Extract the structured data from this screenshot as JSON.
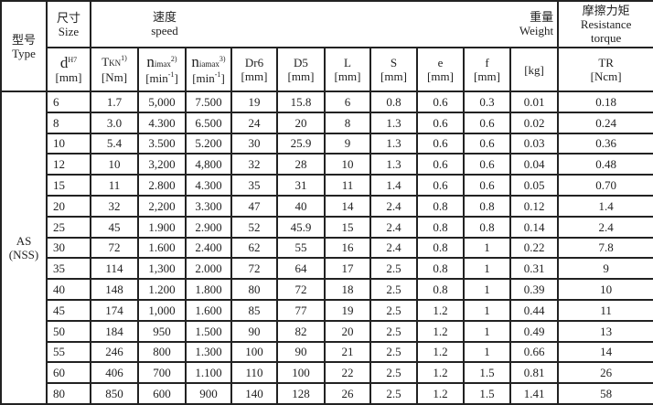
{
  "header": {
    "type_zh": "型号",
    "type_en": "Type",
    "size_zh": "尺寸",
    "size_en": "Size",
    "speed_zh": "速度",
    "speed_en": "speed",
    "weight_zh": "重量",
    "weight_en": "Weight",
    "resistance_zh": "摩擦力矩",
    "resistance_en1": "Resistance",
    "resistance_en2": "torque",
    "cols": {
      "d": {
        "main": "d",
        "sup": "H7",
        "unit": "[mm]"
      },
      "tkn": {
        "main": "T",
        "sub": "KN",
        "sup": "1)",
        "unit": "[Nm]"
      },
      "nimax": {
        "main": "n",
        "sub": "imax",
        "sup": "2)",
        "unit_a": "[min",
        "unit_sup": "-1",
        "unit_b": "]"
      },
      "niamax": {
        "main": "n",
        "sub": "iamax",
        "sup": "3)",
        "unit_a": "[min",
        "unit_sup": "-1",
        "unit_b": "]"
      },
      "dr6": {
        "main": "Dr6",
        "unit": "[mm]"
      },
      "d5": {
        "main": "D5",
        "unit": "[mm]"
      },
      "l": {
        "main": "L",
        "unit": "[mm]"
      },
      "s": {
        "main": "S",
        "unit": "[mm]"
      },
      "e": {
        "main": "e",
        "unit": "[mm]"
      },
      "f": {
        "main": "f",
        "unit": "[mm]"
      },
      "kg": {
        "unit": "[kg]"
      },
      "tr": {
        "main": "TR",
        "unit": "[Ncm]"
      }
    }
  },
  "type_label": "AS",
  "type_sub": "(NSS)",
  "rows": [
    [
      "6",
      "1.7",
      "5,000",
      "7.500",
      "19",
      "15.8",
      "6",
      "0.8",
      "0.6",
      "0.3",
      "0.01",
      "0.18"
    ],
    [
      "8",
      "3.0",
      "4.300",
      "6.500",
      "24",
      "20",
      "8",
      "1.3",
      "0.6",
      "0.6",
      "0.02",
      "0.24"
    ],
    [
      "10",
      "5.4",
      "3.500",
      "5.200",
      "30",
      "25.9",
      "9",
      "1.3",
      "0.6",
      "0.6",
      "0.03",
      "0.36"
    ],
    [
      "12",
      "10",
      "3,200",
      "4,800",
      "32",
      "28",
      "10",
      "1.3",
      "0.6",
      "0.6",
      "0.04",
      "0.48"
    ],
    [
      "15",
      "11",
      "2.800",
      "4.300",
      "35",
      "31",
      "11",
      "1.4",
      "0.6",
      "0.6",
      "0.05",
      "0.70"
    ],
    [
      "20",
      "32",
      "2,200",
      "3.300",
      "47",
      "40",
      "14",
      "2.4",
      "0.8",
      "0.8",
      "0.12",
      "1.4"
    ],
    [
      "25",
      "45",
      "1.900",
      "2.900",
      "52",
      "45.9",
      "15",
      "2.4",
      "0.8",
      "0.8",
      "0.14",
      "2.4"
    ],
    [
      "30",
      "72",
      "1.600",
      "2.400",
      "62",
      "55",
      "16",
      "2.4",
      "0.8",
      "1",
      "0.22",
      "7.8"
    ],
    [
      "35",
      "114",
      "1,300",
      "2.000",
      "72",
      "64",
      "17",
      "2.5",
      "0.8",
      "1",
      "0.31",
      "9"
    ],
    [
      "40",
      "148",
      "1.200",
      "1.800",
      "80",
      "72",
      "18",
      "2.5",
      "0.8",
      "1",
      "0.39",
      "10"
    ],
    [
      "45",
      "174",
      "1,000",
      "1.600",
      "85",
      "77",
      "19",
      "2.5",
      "1.2",
      "1",
      "0.44",
      "11"
    ],
    [
      "50",
      "184",
      "950",
      "1.500",
      "90",
      "82",
      "20",
      "2.5",
      "1.2",
      "1",
      "0.49",
      "13"
    ],
    [
      "55",
      "246",
      "800",
      "1.300",
      "100",
      "90",
      "21",
      "2.5",
      "1.2",
      "1",
      "0.66",
      "14"
    ],
    [
      "60",
      "406",
      "700",
      "1.100",
      "110",
      "100",
      "22",
      "2.5",
      "1.2",
      "1.5",
      "0.81",
      "26"
    ],
    [
      "80",
      "850",
      "600",
      "900",
      "140",
      "128",
      "26",
      "2.5",
      "1.2",
      "1.5",
      "1.41",
      "58"
    ]
  ]
}
